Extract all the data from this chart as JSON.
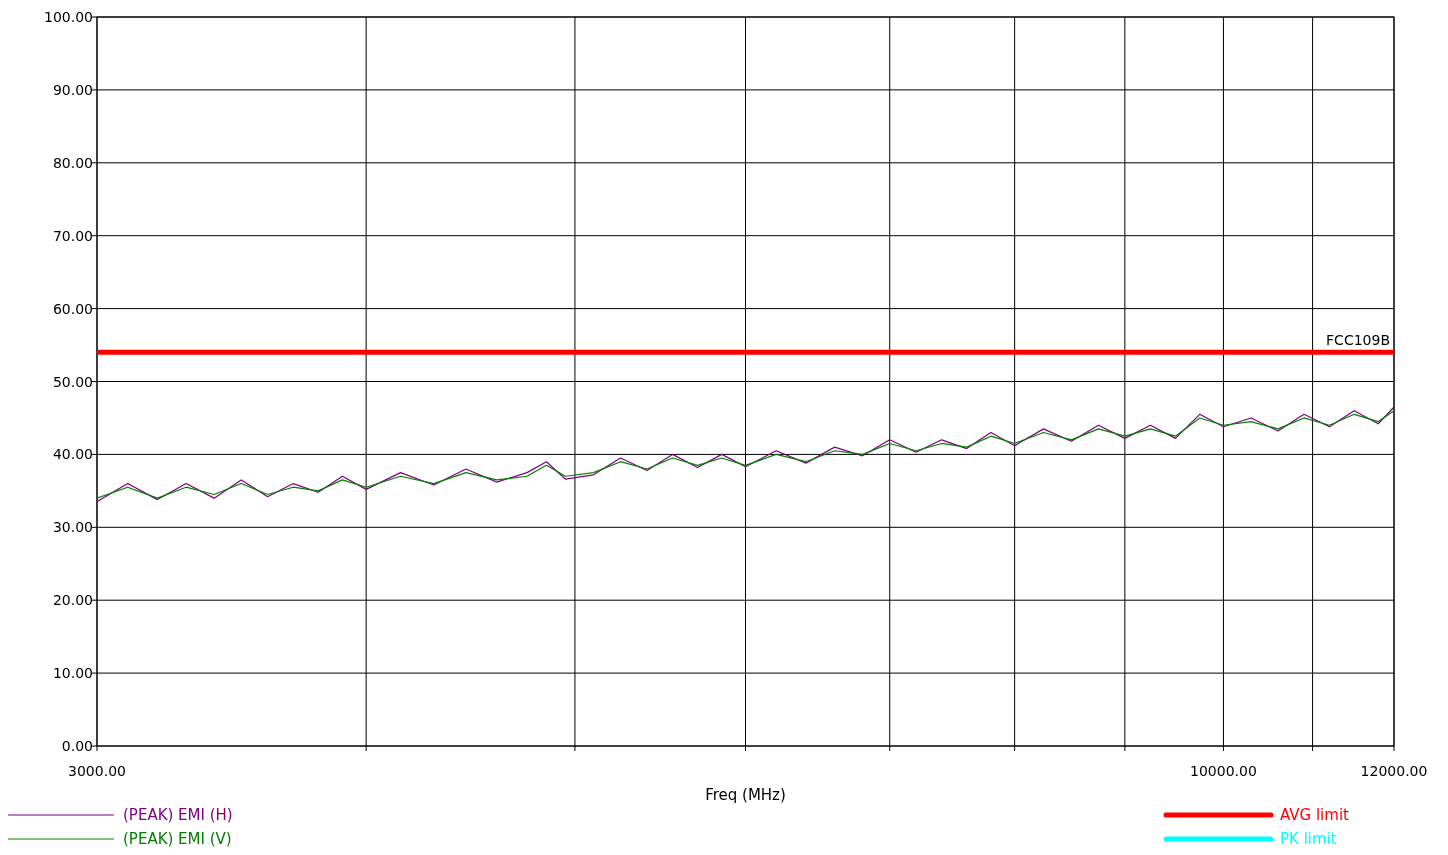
{
  "chart_data": {
    "type": "line",
    "xlabel": "Freq (MHz)",
    "log": "x",
    "xlim": [
      3000,
      12000
    ],
    "xticks": [
      {
        "value": 3000,
        "label": "3000.00"
      },
      {
        "value": 4000,
        "label": null
      },
      {
        "value": 5000,
        "label": null
      },
      {
        "value": 6000,
        "label": null
      },
      {
        "value": 7000,
        "label": null
      },
      {
        "value": 8000,
        "label": null
      },
      {
        "value": 9000,
        "label": null
      },
      {
        "value": 10000,
        "label": "10000.00"
      },
      {
        "value": 11000,
        "label": null
      },
      {
        "value": 12000,
        "label": "12000.00"
      }
    ],
    "ylim": [
      0,
      100
    ],
    "yticks": [
      {
        "value": 0,
        "label": "0.00"
      },
      {
        "value": 10,
        "label": "10.00"
      },
      {
        "value": 20,
        "label": "20.00"
      },
      {
        "value": 30,
        "label": "30.00"
      },
      {
        "value": 40,
        "label": "40.00"
      },
      {
        "value": 50,
        "label": "50.00"
      },
      {
        "value": 60,
        "label": "60.00"
      },
      {
        "value": 70,
        "label": "70.00"
      },
      {
        "value": 80,
        "label": "80.00"
      },
      {
        "value": 90,
        "label": "90.00"
      },
      {
        "value": 100,
        "label": "100.00"
      }
    ],
    "grid": true,
    "legend": "bottom",
    "x": [
      3000,
      3100,
      3200,
      3300,
      3400,
      3500,
      3600,
      3700,
      3800,
      3900,
      4000,
      4150,
      4300,
      4450,
      4600,
      4750,
      4850,
      4950,
      5100,
      5250,
      5400,
      5550,
      5700,
      5850,
      6000,
      6200,
      6400,
      6600,
      6800,
      7000,
      7200,
      7400,
      7600,
      7800,
      8000,
      8250,
      8500,
      8750,
      9000,
      9250,
      9500,
      9750,
      10000,
      10300,
      10600,
      10900,
      11200,
      11500,
      11800,
      12000
    ],
    "series": [
      {
        "name": "(PEAK) EMI (H)",
        "color": "#800080",
        "values": [
          33.5,
          36,
          33.8,
          36,
          34,
          36.5,
          34.2,
          36,
          34.8,
          37,
          35.2,
          37.5,
          35.8,
          38,
          36.2,
          37.5,
          39,
          36.6,
          37.2,
          39.5,
          37.8,
          40,
          38.2,
          40,
          38.3,
          40.5,
          38.8,
          41,
          39.8,
          42,
          40.3,
          42,
          40.8,
          43,
          41.2,
          43.5,
          41.8,
          44,
          42.2,
          44,
          42.2,
          45.5,
          43.8,
          45,
          43.2,
          45.5,
          43.8,
          46,
          44.2,
          46.5
        ]
      },
      {
        "name": "(PEAK) EMI (V)",
        "color": "#008000",
        "values": [
          34,
          35.5,
          34,
          35.5,
          34.5,
          36,
          34.5,
          35.5,
          35,
          36.5,
          35.5,
          37,
          36,
          37.5,
          36.5,
          37,
          38.5,
          37,
          37.5,
          39,
          38,
          39.5,
          38.5,
          39.5,
          38.5,
          40,
          39,
          40.5,
          40,
          41.5,
          40.5,
          41.5,
          41,
          42.5,
          41.5,
          43,
          42,
          43.5,
          42.5,
          43.5,
          42.5,
          45,
          44,
          44.5,
          43.5,
          45,
          44,
          45.5,
          44.5,
          46
        ]
      },
      {
        "name": "AVG limit",
        "color": "#ff0000",
        "x": [
          3000,
          12000
        ],
        "values": [
          54,
          54
        ]
      },
      {
        "name": "PK limit",
        "color": "#00ffff",
        "values": [
          null,
          null,
          null,
          null,
          null,
          null,
          null,
          null,
          null,
          null,
          null,
          null,
          null,
          null,
          null,
          null,
          null,
          null,
          null,
          null,
          null,
          null,
          null,
          null,
          null,
          null,
          null,
          null,
          null,
          null,
          null,
          null,
          null,
          null,
          null,
          null,
          null,
          null,
          null,
          null,
          null,
          null,
          null,
          null,
          null,
          null,
          null,
          null,
          null,
          null
        ]
      }
    ],
    "annotations": [
      {
        "text": "FCC109B",
        "x": 12000,
        "y": 54
      }
    ]
  }
}
